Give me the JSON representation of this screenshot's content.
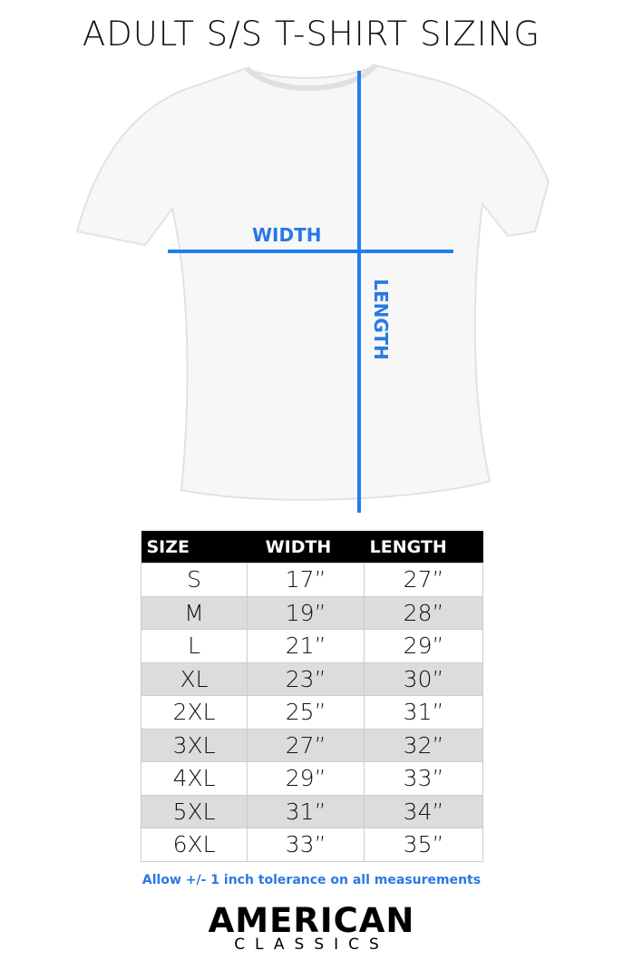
{
  "title": "ADULT S/S T-SHIRT SIZING",
  "diagram": {
    "width_label": "WIDTH",
    "length_label": "LENGTH",
    "line_color": "#1e7ff0"
  },
  "table": {
    "headers": [
      "SIZE",
      "WIDTH",
      "LENGTH"
    ],
    "rows": [
      [
        "S",
        "17”",
        "27”"
      ],
      [
        "M",
        "19”",
        "28”"
      ],
      [
        "L",
        "21”",
        "29”"
      ],
      [
        "XL",
        "23”",
        "30”"
      ],
      [
        "2XL",
        "25”",
        "31”"
      ],
      [
        "3XL",
        "27”",
        "32”"
      ],
      [
        "4XL",
        "29”",
        "33”"
      ],
      [
        "5XL",
        "31”",
        "34”"
      ],
      [
        "6XL",
        "33”",
        "35”"
      ]
    ]
  },
  "note": "Allow +/- 1 inch tolerance on all measurements",
  "logo": {
    "line1": "AMERICAN",
    "line2": "CLASSICS"
  }
}
